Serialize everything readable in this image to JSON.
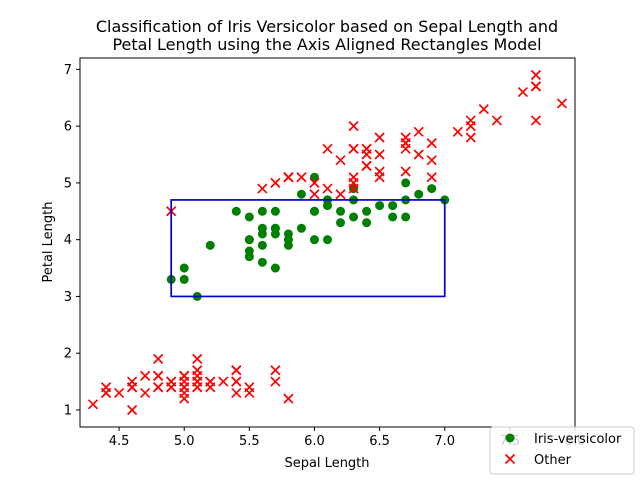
{
  "chart_data": {
    "type": "scatter",
    "title_lines": [
      "Classification of Iris Versicolor based on Sepal Length and",
      "Petal Length using the Axis Aligned Rectangles Model"
    ],
    "xlabel": "Sepal Length",
    "ylabel": "Petal Length",
    "xlim": [
      4.2,
      8.0
    ],
    "ylim": [
      0.7,
      7.2
    ],
    "xticks": [
      "4.5",
      "5.0",
      "5.5",
      "6.0",
      "6.5",
      "7.0",
      "7.5",
      "8.0"
    ],
    "yticks": [
      "1",
      "2",
      "3",
      "4",
      "5",
      "6",
      "7"
    ],
    "legend_position": "lower-right",
    "series": [
      {
        "name": "Iris-versicolor",
        "marker": "circle",
        "color": "#008000",
        "points": [
          [
            7.0,
            4.7
          ],
          [
            6.4,
            4.5
          ],
          [
            6.9,
            4.9
          ],
          [
            5.5,
            4.0
          ],
          [
            6.5,
            4.6
          ],
          [
            5.7,
            4.5
          ],
          [
            6.3,
            4.7
          ],
          [
            4.9,
            3.3
          ],
          [
            6.6,
            4.6
          ],
          [
            5.2,
            3.9
          ],
          [
            5.0,
            3.5
          ],
          [
            5.9,
            4.2
          ],
          [
            6.0,
            4.0
          ],
          [
            6.1,
            4.7
          ],
          [
            5.6,
            3.6
          ],
          [
            6.7,
            4.4
          ],
          [
            5.6,
            4.5
          ],
          [
            5.8,
            4.1
          ],
          [
            6.2,
            4.5
          ],
          [
            5.6,
            3.9
          ],
          [
            5.9,
            4.8
          ],
          [
            6.1,
            4.0
          ],
          [
            6.3,
            4.9
          ],
          [
            6.1,
            4.7
          ],
          [
            6.4,
            4.3
          ],
          [
            6.6,
            4.4
          ],
          [
            6.8,
            4.8
          ],
          [
            6.7,
            5.0
          ],
          [
            6.0,
            4.5
          ],
          [
            5.7,
            3.5
          ],
          [
            5.5,
            3.8
          ],
          [
            5.5,
            3.7
          ],
          [
            5.8,
            3.9
          ],
          [
            6.0,
            5.1
          ],
          [
            5.4,
            4.5
          ],
          [
            6.0,
            4.5
          ],
          [
            6.7,
            4.7
          ],
          [
            6.3,
            4.4
          ],
          [
            5.6,
            4.1
          ],
          [
            5.5,
            4.0
          ],
          [
            5.5,
            4.4
          ],
          [
            6.1,
            4.6
          ],
          [
            5.8,
            4.0
          ],
          [
            5.0,
            3.3
          ],
          [
            5.6,
            4.2
          ],
          [
            5.7,
            4.2
          ],
          [
            5.7,
            4.2
          ],
          [
            6.2,
            4.3
          ],
          [
            5.1,
            3.0
          ],
          [
            5.7,
            4.1
          ]
        ]
      },
      {
        "name": "Other",
        "marker": "x",
        "color": "#ff0000",
        "points": [
          [
            5.1,
            1.4
          ],
          [
            4.9,
            1.4
          ],
          [
            4.7,
            1.3
          ],
          [
            4.6,
            1.5
          ],
          [
            5.0,
            1.4
          ],
          [
            5.4,
            1.7
          ],
          [
            4.6,
            1.4
          ],
          [
            5.0,
            1.5
          ],
          [
            4.4,
            1.4
          ],
          [
            4.9,
            1.5
          ],
          [
            5.4,
            1.5
          ],
          [
            4.8,
            1.6
          ],
          [
            4.8,
            1.4
          ],
          [
            4.3,
            1.1
          ],
          [
            5.8,
            1.2
          ],
          [
            5.7,
            1.5
          ],
          [
            5.4,
            1.3
          ],
          [
            5.1,
            1.4
          ],
          [
            5.7,
            1.7
          ],
          [
            5.1,
            1.5
          ],
          [
            5.4,
            1.7
          ],
          [
            5.1,
            1.5
          ],
          [
            4.6,
            1.0
          ],
          [
            5.1,
            1.7
          ],
          [
            4.8,
            1.9
          ],
          [
            5.0,
            1.6
          ],
          [
            5.0,
            1.6
          ],
          [
            5.2,
            1.5
          ],
          [
            5.2,
            1.4
          ],
          [
            4.7,
            1.6
          ],
          [
            4.8,
            1.6
          ],
          [
            5.4,
            1.5
          ],
          [
            5.2,
            1.5
          ],
          [
            5.5,
            1.4
          ],
          [
            4.9,
            1.5
          ],
          [
            5.0,
            1.2
          ],
          [
            5.5,
            1.3
          ],
          [
            4.9,
            1.4
          ],
          [
            4.4,
            1.3
          ],
          [
            5.1,
            1.5
          ],
          [
            5.0,
            1.3
          ],
          [
            4.5,
            1.3
          ],
          [
            4.4,
            1.3
          ],
          [
            5.0,
            1.6
          ],
          [
            5.1,
            1.9
          ],
          [
            4.8,
            1.4
          ],
          [
            5.1,
            1.6
          ],
          [
            4.6,
            1.4
          ],
          [
            5.3,
            1.5
          ],
          [
            5.0,
            1.4
          ],
          [
            6.3,
            6.0
          ],
          [
            5.8,
            5.1
          ],
          [
            7.1,
            5.9
          ],
          [
            6.3,
            5.6
          ],
          [
            6.5,
            5.8
          ],
          [
            7.6,
            6.6
          ],
          [
            4.9,
            4.5
          ],
          [
            7.3,
            6.3
          ],
          [
            6.7,
            5.8
          ],
          [
            7.2,
            6.1
          ],
          [
            6.5,
            5.1
          ],
          [
            6.4,
            5.3
          ],
          [
            6.8,
            5.5
          ],
          [
            5.7,
            5.0
          ],
          [
            5.8,
            5.1
          ],
          [
            6.4,
            5.3
          ],
          [
            6.5,
            5.5
          ],
          [
            7.7,
            6.7
          ],
          [
            7.7,
            6.9
          ],
          [
            6.0,
            5.0
          ],
          [
            6.9,
            5.7
          ],
          [
            5.6,
            4.9
          ],
          [
            7.7,
            6.7
          ],
          [
            6.3,
            4.9
          ],
          [
            6.7,
            5.7
          ],
          [
            7.2,
            6.0
          ],
          [
            6.2,
            4.8
          ],
          [
            6.1,
            4.9
          ],
          [
            6.4,
            5.6
          ],
          [
            7.2,
            5.8
          ],
          [
            7.4,
            6.1
          ],
          [
            7.9,
            6.4
          ],
          [
            6.4,
            5.6
          ],
          [
            6.3,
            5.1
          ],
          [
            6.1,
            5.6
          ],
          [
            7.7,
            6.1
          ],
          [
            6.3,
            5.6
          ],
          [
            6.4,
            5.5
          ],
          [
            6.0,
            4.8
          ],
          [
            6.9,
            5.4
          ],
          [
            6.7,
            5.6
          ],
          [
            6.9,
            5.1
          ],
          [
            5.8,
            5.1
          ],
          [
            6.8,
            5.9
          ],
          [
            6.7,
            5.7
          ],
          [
            6.7,
            5.2
          ],
          [
            6.3,
            5.0
          ],
          [
            6.5,
            5.2
          ],
          [
            6.2,
            5.4
          ],
          [
            5.9,
            5.1
          ]
        ]
      }
    ],
    "rectangle": {
      "x_min": 4.9,
      "x_max": 7.0,
      "y_min": 3.0,
      "y_max": 4.7,
      "color": "#0000cc"
    }
  }
}
